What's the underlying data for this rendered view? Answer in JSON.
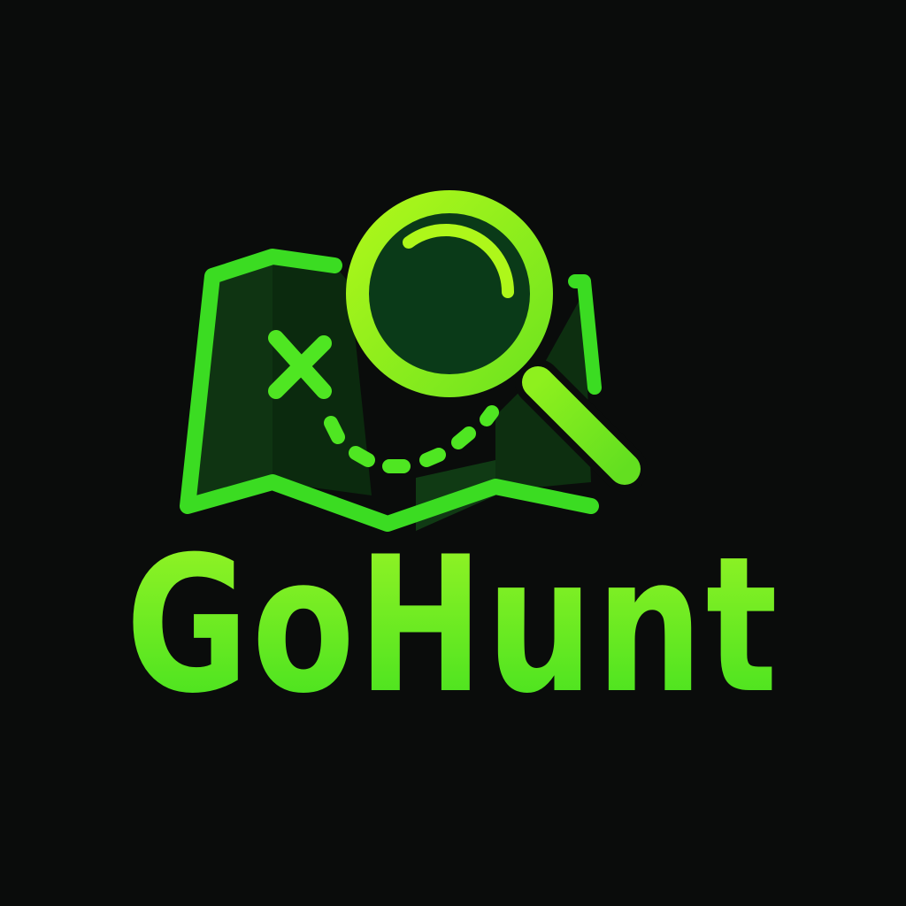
{
  "logo": {
    "wordmark": "GoHunt",
    "icon_names": [
      "treasure-map-icon",
      "x-marks-the-spot-icon",
      "dotted-trail-icon",
      "magnifying-glass-icon"
    ]
  },
  "colors": {
    "background": "#0a0c0b",
    "map_stroke": "#3bdc22",
    "map_fill_dark": "#0d2a10",
    "map_fill_mid": "#123a15",
    "lens_ring": "#8ef01e",
    "lens_fill": "#0a3a18",
    "wordmark_top": "#9cf526",
    "wordmark_bottom": "#3ee01f"
  }
}
